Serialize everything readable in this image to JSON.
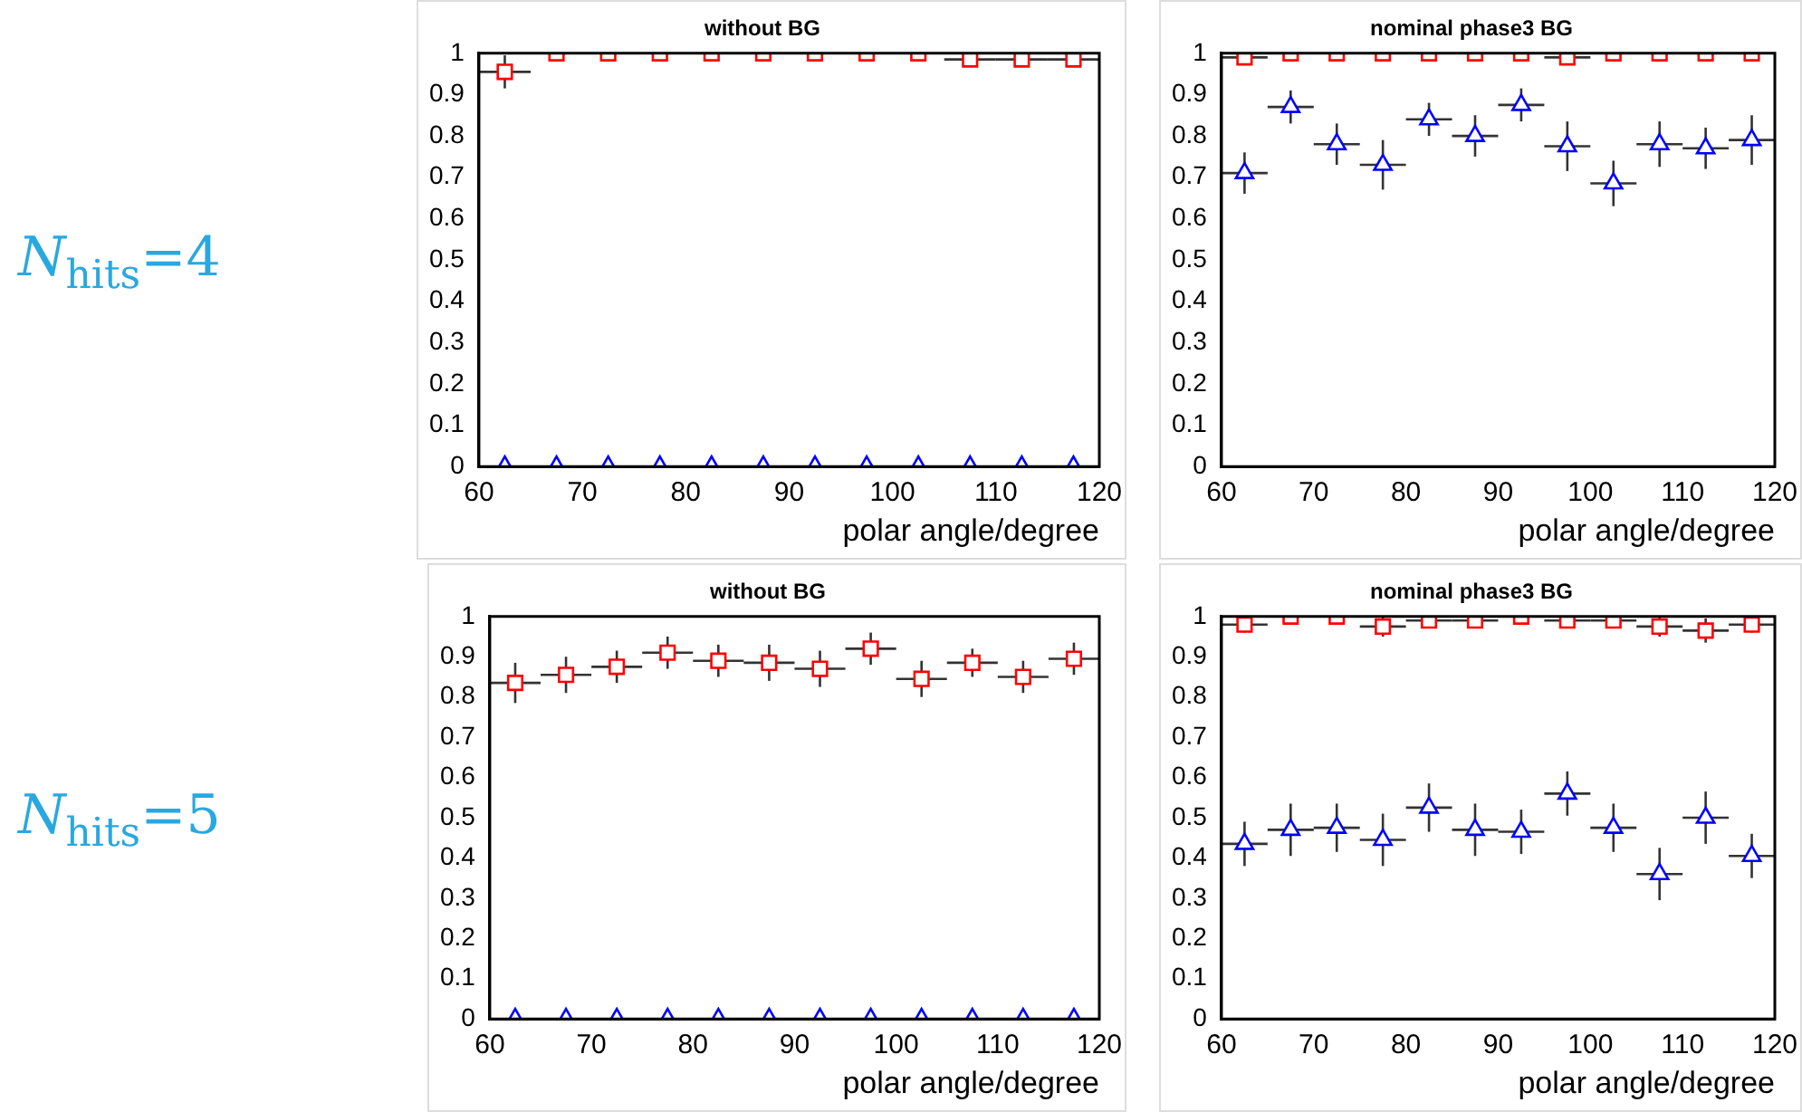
{
  "chart_data": [
    {
      "type": "scatter",
      "title": "without BG",
      "xlabel": "polar angle/degree",
      "annotations": [
        "N$_{hits}$=4"
      ],
      "xlim": [
        60,
        120
      ],
      "xticks": [
        60,
        70,
        80,
        90,
        100,
        110,
        120
      ],
      "ylim": [
        0,
        1
      ],
      "yticks": [
        0,
        0.1,
        0.2,
        0.3,
        0.4,
        0.5,
        0.6,
        0.7,
        0.8,
        0.9,
        1
      ],
      "grid": false,
      "legend": false,
      "x": [
        62.5,
        67.5,
        72.5,
        77.5,
        82.5,
        87.5,
        92.5,
        97.5,
        102.5,
        107.5,
        112.5,
        117.5
      ],
      "series": [
        {
          "color": "#ff0000",
          "marker": "square",
          "values": [
            0.955,
            1,
            1,
            1,
            1,
            1,
            1,
            1,
            1,
            0.985,
            0.985,
            0.985
          ],
          "errors": [
            0.04,
            null,
            null,
            null,
            null,
            null,
            null,
            null,
            null,
            0.015,
            0.015,
            0.015
          ],
          "xerrors": [
            2.5,
            null,
            null,
            null,
            null,
            null,
            null,
            null,
            null,
            2.5,
            2.5,
            2.5
          ]
        },
        {
          "color": "#0000ff",
          "marker": "triangle",
          "values": [
            0,
            0,
            0,
            0,
            0,
            0,
            0,
            0,
            0,
            0,
            0,
            0
          ]
        }
      ]
    },
    {
      "type": "scatter",
      "title": "nominal phase3 BG",
      "xlabel": "polar angle/degree",
      "xlim": [
        60,
        120
      ],
      "xticks": [
        60,
        70,
        80,
        90,
        100,
        110,
        120
      ],
      "ylim": [
        0,
        1
      ],
      "yticks": [
        0,
        0.1,
        0.2,
        0.3,
        0.4,
        0.5,
        0.6,
        0.7,
        0.8,
        0.9,
        1
      ],
      "grid": false,
      "legend": false,
      "x": [
        62.5,
        67.5,
        72.5,
        77.5,
        82.5,
        87.5,
        92.5,
        97.5,
        102.5,
        107.5,
        112.5,
        117.5
      ],
      "series": [
        {
          "color": "#ff0000",
          "marker": "square",
          "values": [
            0.99,
            1,
            1,
            1,
            1,
            1,
            1,
            0.99,
            1,
            1,
            1,
            1
          ],
          "errors": [
            0.01,
            null,
            null,
            null,
            null,
            null,
            null,
            0.01,
            null,
            null,
            null,
            null
          ],
          "xerrors": [
            2.5,
            null,
            null,
            null,
            null,
            null,
            null,
            2.5,
            null,
            null,
            null,
            null
          ]
        },
        {
          "color": "#0000ff",
          "marker": "triangle",
          "values": [
            0.71,
            0.87,
            0.78,
            0.73,
            0.84,
            0.8,
            0.875,
            0.775,
            0.685,
            0.78,
            0.77,
            0.79
          ],
          "errors": [
            0.05,
            0.04,
            0.05,
            0.06,
            0.04,
            0.05,
            0.04,
            0.06,
            0.055,
            0.055,
            0.05,
            0.06
          ],
          "xerrors": [
            2.5,
            2.5,
            2.5,
            2.5,
            2.5,
            2.5,
            2.5,
            2.5,
            2.5,
            2.5,
            2.5,
            2.5
          ]
        }
      ]
    },
    {
      "type": "scatter",
      "title": "without BG",
      "xlabel": "polar angle/degree",
      "annotations": [
        "N$_{hits}$=5"
      ],
      "xlim": [
        60,
        120
      ],
      "xticks": [
        60,
        70,
        80,
        90,
        100,
        110,
        120
      ],
      "ylim": [
        0,
        1
      ],
      "yticks": [
        0,
        0.1,
        0.2,
        0.3,
        0.4,
        0.5,
        0.6,
        0.7,
        0.8,
        0.9,
        1
      ],
      "grid": false,
      "legend": false,
      "x": [
        62.5,
        67.5,
        72.5,
        77.5,
        82.5,
        87.5,
        92.5,
        97.5,
        102.5,
        107.5,
        112.5,
        117.5
      ],
      "series": [
        {
          "color": "#ff0000",
          "marker": "square",
          "values": [
            0.835,
            0.855,
            0.875,
            0.91,
            0.89,
            0.885,
            0.87,
            0.92,
            0.845,
            0.885,
            0.85,
            0.895
          ],
          "errors": [
            0.05,
            0.045,
            0.04,
            0.04,
            0.04,
            0.045,
            0.045,
            0.04,
            0.045,
            0.035,
            0.04,
            0.04
          ],
          "xerrors": [
            2.5,
            2.5,
            2.5,
            2.5,
            2.5,
            2.5,
            2.5,
            2.5,
            2.5,
            2.5,
            2.5,
            2.5
          ]
        },
        {
          "color": "#0000ff",
          "marker": "triangle",
          "values": [
            0,
            0,
            0,
            0,
            0,
            0,
            0,
            0,
            0,
            0,
            0,
            0
          ]
        }
      ]
    },
    {
      "type": "scatter",
      "title": "nominal phase3 BG",
      "xlabel": "polar angle/degree",
      "xlim": [
        60,
        120
      ],
      "xticks": [
        60,
        70,
        80,
        90,
        100,
        110,
        120
      ],
      "ylim": [
        0,
        1
      ],
      "yticks": [
        0,
        0.1,
        0.2,
        0.3,
        0.4,
        0.5,
        0.6,
        0.7,
        0.8,
        0.9,
        1
      ],
      "grid": false,
      "legend": false,
      "x": [
        62.5,
        67.5,
        72.5,
        77.5,
        82.5,
        87.5,
        92.5,
        97.5,
        102.5,
        107.5,
        112.5,
        117.5
      ],
      "series": [
        {
          "color": "#ff0000",
          "marker": "square",
          "values": [
            0.98,
            1,
            1,
            0.975,
            0.99,
            0.99,
            1,
            0.99,
            0.99,
            0.975,
            0.965,
            0.98
          ],
          "errors": [
            0.02,
            null,
            null,
            0.025,
            0.01,
            0.01,
            null,
            0.01,
            0.01,
            0.025,
            0.03,
            0.02
          ],
          "xerrors": [
            2.5,
            null,
            null,
            2.5,
            2.5,
            2.5,
            null,
            2.5,
            2.5,
            2.5,
            2.5,
            2.5
          ]
        },
        {
          "color": "#0000ff",
          "marker": "triangle",
          "values": [
            0.435,
            0.47,
            0.475,
            0.445,
            0.525,
            0.47,
            0.465,
            0.56,
            0.475,
            0.36,
            0.5,
            0.405
          ],
          "errors": [
            0.055,
            0.065,
            0.06,
            0.065,
            0.06,
            0.065,
            0.055,
            0.055,
            0.06,
            0.065,
            0.065,
            0.055
          ],
          "xerrors": [
            2.5,
            2.5,
            2.5,
            2.5,
            2.5,
            2.5,
            2.5,
            2.5,
            2.5,
            2.5,
            2.5,
            2.5
          ]
        }
      ]
    }
  ]
}
